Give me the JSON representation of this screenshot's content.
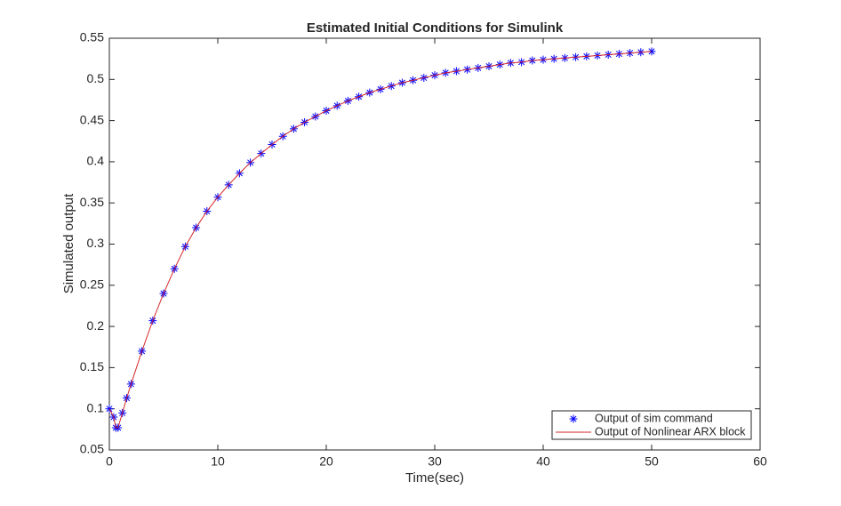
{
  "chart_data": {
    "type": "line",
    "title": "Estimated Initial Conditions for Simulink",
    "x_label": "Time(sec)",
    "y_label": "Simulated output",
    "x": [
      0,
      0.4,
      0.6,
      0.8,
      1.2,
      1.6,
      2,
      3,
      4,
      5,
      6,
      7,
      8,
      9,
      10,
      11,
      12,
      13,
      14,
      15,
      16,
      17,
      18,
      19,
      20,
      21,
      22,
      23,
      24,
      25,
      26,
      27,
      28,
      29,
      30,
      31,
      32,
      33,
      34,
      35,
      36,
      37,
      38,
      39,
      40,
      41,
      42,
      43,
      44,
      45,
      46,
      47,
      48,
      49,
      50
    ],
    "series": [
      {
        "name": "Output of sim command",
        "color": "#0000ff",
        "marker": "asterisk",
        "values": [
          0.1,
          0.09,
          0.077,
          0.077,
          0.095,
          0.113,
          0.13,
          0.17,
          0.207,
          0.24,
          0.27,
          0.297,
          0.32,
          0.34,
          0.357,
          0.372,
          0.386,
          0.399,
          0.41,
          0.421,
          0.431,
          0.44,
          0.448,
          0.455,
          0.462,
          0.468,
          0.474,
          0.479,
          0.484,
          0.488,
          0.492,
          0.496,
          0.499,
          0.502,
          0.505,
          0.508,
          0.51,
          0.512,
          0.514,
          0.516,
          0.518,
          0.52,
          0.521,
          0.523,
          0.524,
          0.525,
          0.526,
          0.527,
          0.528,
          0.529,
          0.53,
          0.531,
          0.532,
          0.533,
          0.534
        ]
      },
      {
        "name": "Output of Nonlinear ARX block",
        "color": "#d62728",
        "marker": "none",
        "values": [
          0.1,
          0.09,
          0.077,
          0.077,
          0.095,
          0.113,
          0.13,
          0.17,
          0.207,
          0.24,
          0.27,
          0.297,
          0.32,
          0.34,
          0.357,
          0.372,
          0.386,
          0.399,
          0.41,
          0.421,
          0.431,
          0.44,
          0.448,
          0.455,
          0.462,
          0.468,
          0.474,
          0.479,
          0.484,
          0.488,
          0.492,
          0.496,
          0.499,
          0.502,
          0.505,
          0.508,
          0.51,
          0.512,
          0.514,
          0.516,
          0.518,
          0.52,
          0.521,
          0.523,
          0.524,
          0.525,
          0.526,
          0.527,
          0.528,
          0.529,
          0.53,
          0.531,
          0.532,
          0.533,
          0.534
        ]
      }
    ],
    "xlim": [
      0,
      60
    ],
    "xticks": [
      0,
      10,
      20,
      30,
      40,
      50,
      60
    ],
    "ylim": [
      0.05,
      0.55
    ],
    "yticks": [
      0.05,
      0.1,
      0.15,
      0.2,
      0.25,
      0.3,
      0.35,
      0.4,
      0.45,
      0.5,
      0.55
    ],
    "grid": false,
    "legend": "lower right"
  }
}
